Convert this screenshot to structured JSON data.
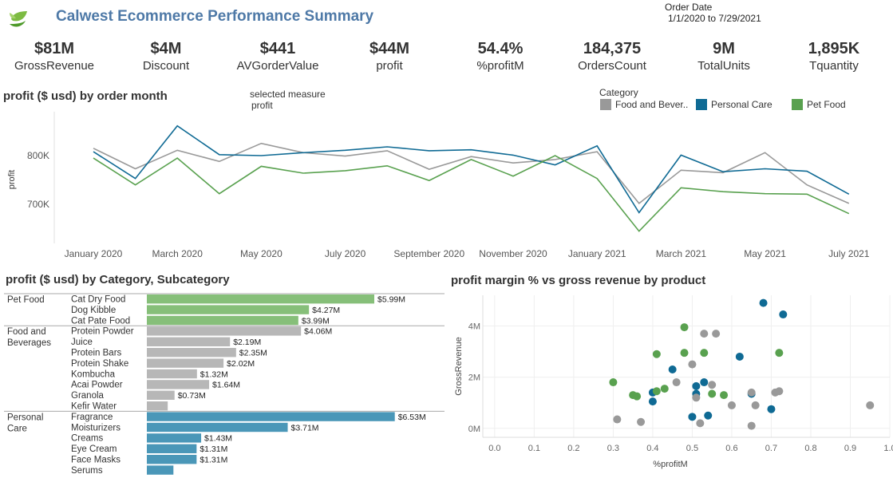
{
  "header": {
    "title": "Calwest Ecommerce Performance Summary",
    "order_date_label": "Order Date",
    "order_date_range": "1/1/2020 to 7/29/2021"
  },
  "kpis": [
    {
      "value": "$81M",
      "label": "GrossRevenue"
    },
    {
      "value": "$4M",
      "label": "Discount"
    },
    {
      "value": "$441",
      "label": "AVGorderValue"
    },
    {
      "value": "$44M",
      "label": "profit"
    },
    {
      "value": "54.4%",
      "label": "%profitM"
    },
    {
      "value": "184,375",
      "label": "OrdersCount"
    },
    {
      "value": "9M",
      "label": "TotalUnits"
    },
    {
      "value": "1,895K",
      "label": "Tquantity"
    }
  ],
  "colors": {
    "food": "#999999",
    "personal": "#0f6a94",
    "pet": "#59a14f",
    "pet_bar": "#86bf79",
    "food_bar": "#b7b7b7",
    "personal_bar": "#4a97b8",
    "title": "#4e79a7"
  },
  "line_section": {
    "title": "profit ($ usd) by order month",
    "selected_measure_label": "selected measure",
    "selected_measure_value": "profit",
    "legend_title": "Category"
  },
  "bar_section": {
    "title": "profit ($ usd) by Category, Subcategory"
  },
  "scatter_section": {
    "title": "profit margin % vs gross revenue by product"
  },
  "chart_data": [
    {
      "type": "line",
      "title": "profit ($ usd) by order month",
      "ylabel": "profit",
      "xlabel": "",
      "x": [
        "2020-01",
        "2020-02",
        "2020-03",
        "2020-04",
        "2020-05",
        "2020-06",
        "2020-07",
        "2020-08",
        "2020-09",
        "2020-10",
        "2020-11",
        "2020-12",
        "2021-01",
        "2021-02",
        "2021-03",
        "2021-04",
        "2021-05",
        "2021-06",
        "2021-07"
      ],
      "x_tick_labels": [
        "January 2020",
        "March 2020",
        "May 2020",
        "July 2020",
        "September 2020",
        "November 2020",
        "January 2021",
        "March 2021",
        "May 2021",
        "July 2021"
      ],
      "x_tick_index": [
        0,
        2,
        4,
        6,
        8,
        10,
        12,
        14,
        16,
        18
      ],
      "y_ticks": [
        700000,
        800000
      ],
      "y_tick_labels": [
        "700K",
        "800K"
      ],
      "ylim": [
        620000,
        890000
      ],
      "series": [
        {
          "name": "Food and Bever..",
          "values": [
            815000,
            773000,
            811000,
            788000,
            825000,
            806000,
            799000,
            810000,
            772000,
            798000,
            785000,
            792000,
            808000,
            702000,
            770000,
            765000,
            806000,
            740000,
            702000
          ]
        },
        {
          "name": "Personal Care",
          "values": [
            808000,
            753000,
            861000,
            802000,
            800000,
            806000,
            811000,
            818000,
            810000,
            812000,
            801000,
            781000,
            820000,
            683000,
            801000,
            767000,
            773000,
            768000,
            721000
          ]
        },
        {
          "name": "Pet Food",
          "values": [
            795000,
            740000,
            795000,
            722000,
            778000,
            764000,
            769000,
            779000,
            749000,
            792000,
            758000,
            800000,
            753000,
            645000,
            734000,
            726000,
            722000,
            721000,
            681000
          ]
        }
      ],
      "legend_position": "top-right",
      "grid": false
    },
    {
      "type": "bar",
      "title": "profit ($ usd) by Category, Subcategory",
      "orientation": "horizontal",
      "groups": [
        {
          "category": "Pet Food",
          "items": [
            {
              "name": "Cat Dry Food",
              "value": 5.99,
              "label": "$5.99M"
            },
            {
              "name": "Dog Kibble",
              "value": 4.27,
              "label": "$4.27M"
            },
            {
              "name": "Cat Pate Food",
              "value": 3.99,
              "label": "$3.99M"
            }
          ]
        },
        {
          "category": "Food and Beverages",
          "items": [
            {
              "name": "Protein Powder",
              "value": 4.06,
              "label": "$4.06M"
            },
            {
              "name": "Juice",
              "value": 2.19,
              "label": "$2.19M"
            },
            {
              "name": "Protein Bars",
              "value": 2.35,
              "label": "$2.35M"
            },
            {
              "name": "Protein Shake",
              "value": 2.02,
              "label": "$2.02M"
            },
            {
              "name": "Kombucha",
              "value": 1.32,
              "label": "$1.32M"
            },
            {
              "name": "Acai Powder",
              "value": 1.64,
              "label": "$1.64M"
            },
            {
              "name": "Granola",
              "value": 0.73,
              "label": "$0.73M"
            },
            {
              "name": "Kefir Water",
              "value": 0.55,
              "label": ""
            }
          ]
        },
        {
          "category": "Personal Care",
          "items": [
            {
              "name": "Fragrance",
              "value": 6.53,
              "label": "$6.53M"
            },
            {
              "name": "Moisturizers",
              "value": 3.71,
              "label": "$3.71M"
            },
            {
              "name": "Creams",
              "value": 1.43,
              "label": "$1.43M"
            },
            {
              "name": "Eye Cream",
              "value": 1.31,
              "label": "$1.31M"
            },
            {
              "name": "Face Masks",
              "value": 1.31,
              "label": "$1.31M"
            },
            {
              "name": "Serums",
              "value": 0.7,
              "label": ""
            }
          ]
        }
      ]
    },
    {
      "type": "scatter",
      "title": "profit margin % vs gross revenue by product",
      "xlabel": "%profitM",
      "ylabel": "GrossRevenue",
      "xlim": [
        -0.03,
        1.0
      ],
      "ylim": [
        -0.35,
        5.2
      ],
      "x_ticks": [
        0.0,
        0.1,
        0.2,
        0.3,
        0.4,
        0.5,
        0.6,
        0.7,
        0.8,
        0.9,
        1.0
      ],
      "x_tick_labels": [
        "0.0",
        "0.1",
        "0.2",
        "0.3",
        "0.4",
        "0.5",
        "0.6",
        "0.7",
        "0.8",
        "0.9",
        "1.0"
      ],
      "y_ticks": [
        0,
        2,
        4
      ],
      "y_tick_labels": [
        "0M",
        "2M",
        "4M"
      ],
      "series": [
        {
          "name": "Personal Care",
          "points": [
            [
              0.68,
              4.9
            ],
            [
              0.73,
              4.45
            ],
            [
              0.62,
              2.8
            ],
            [
              0.45,
              2.3
            ],
            [
              0.53,
              1.8
            ],
            [
              0.51,
              1.65
            ],
            [
              0.51,
              1.35
            ],
            [
              0.4,
              1.4
            ],
            [
              0.4,
              1.05
            ],
            [
              0.65,
              1.35
            ],
            [
              0.7,
              0.75
            ],
            [
              0.54,
              0.5
            ],
            [
              0.5,
              0.45
            ]
          ]
        },
        {
          "name": "Pet Food",
          "points": [
            [
              0.48,
              3.95
            ],
            [
              0.41,
              2.9
            ],
            [
              0.48,
              2.95
            ],
            [
              0.53,
              2.95
            ],
            [
              0.72,
              2.95
            ],
            [
              0.3,
              1.8
            ],
            [
              0.43,
              1.55
            ],
            [
              0.41,
              1.45
            ],
            [
              0.35,
              1.3
            ],
            [
              0.36,
              1.25
            ],
            [
              0.55,
              1.35
            ],
            [
              0.58,
              1.3
            ]
          ]
        },
        {
          "name": "Food and Bever..",
          "points": [
            [
              0.53,
              3.7
            ],
            [
              0.56,
              3.7
            ],
            [
              0.5,
              2.5
            ],
            [
              0.46,
              1.8
            ],
            [
              0.55,
              1.7
            ],
            [
              0.51,
              1.2
            ],
            [
              0.6,
              0.9
            ],
            [
              0.65,
              1.4
            ],
            [
              0.71,
              1.4
            ],
            [
              0.72,
              1.45
            ],
            [
              0.66,
              0.9
            ],
            [
              0.95,
              0.9
            ],
            [
              0.31,
              0.35
            ],
            [
              0.37,
              0.25
            ],
            [
              0.52,
              0.2
            ],
            [
              0.65,
              0.1
            ]
          ]
        }
      ],
      "grid": true
    }
  ]
}
